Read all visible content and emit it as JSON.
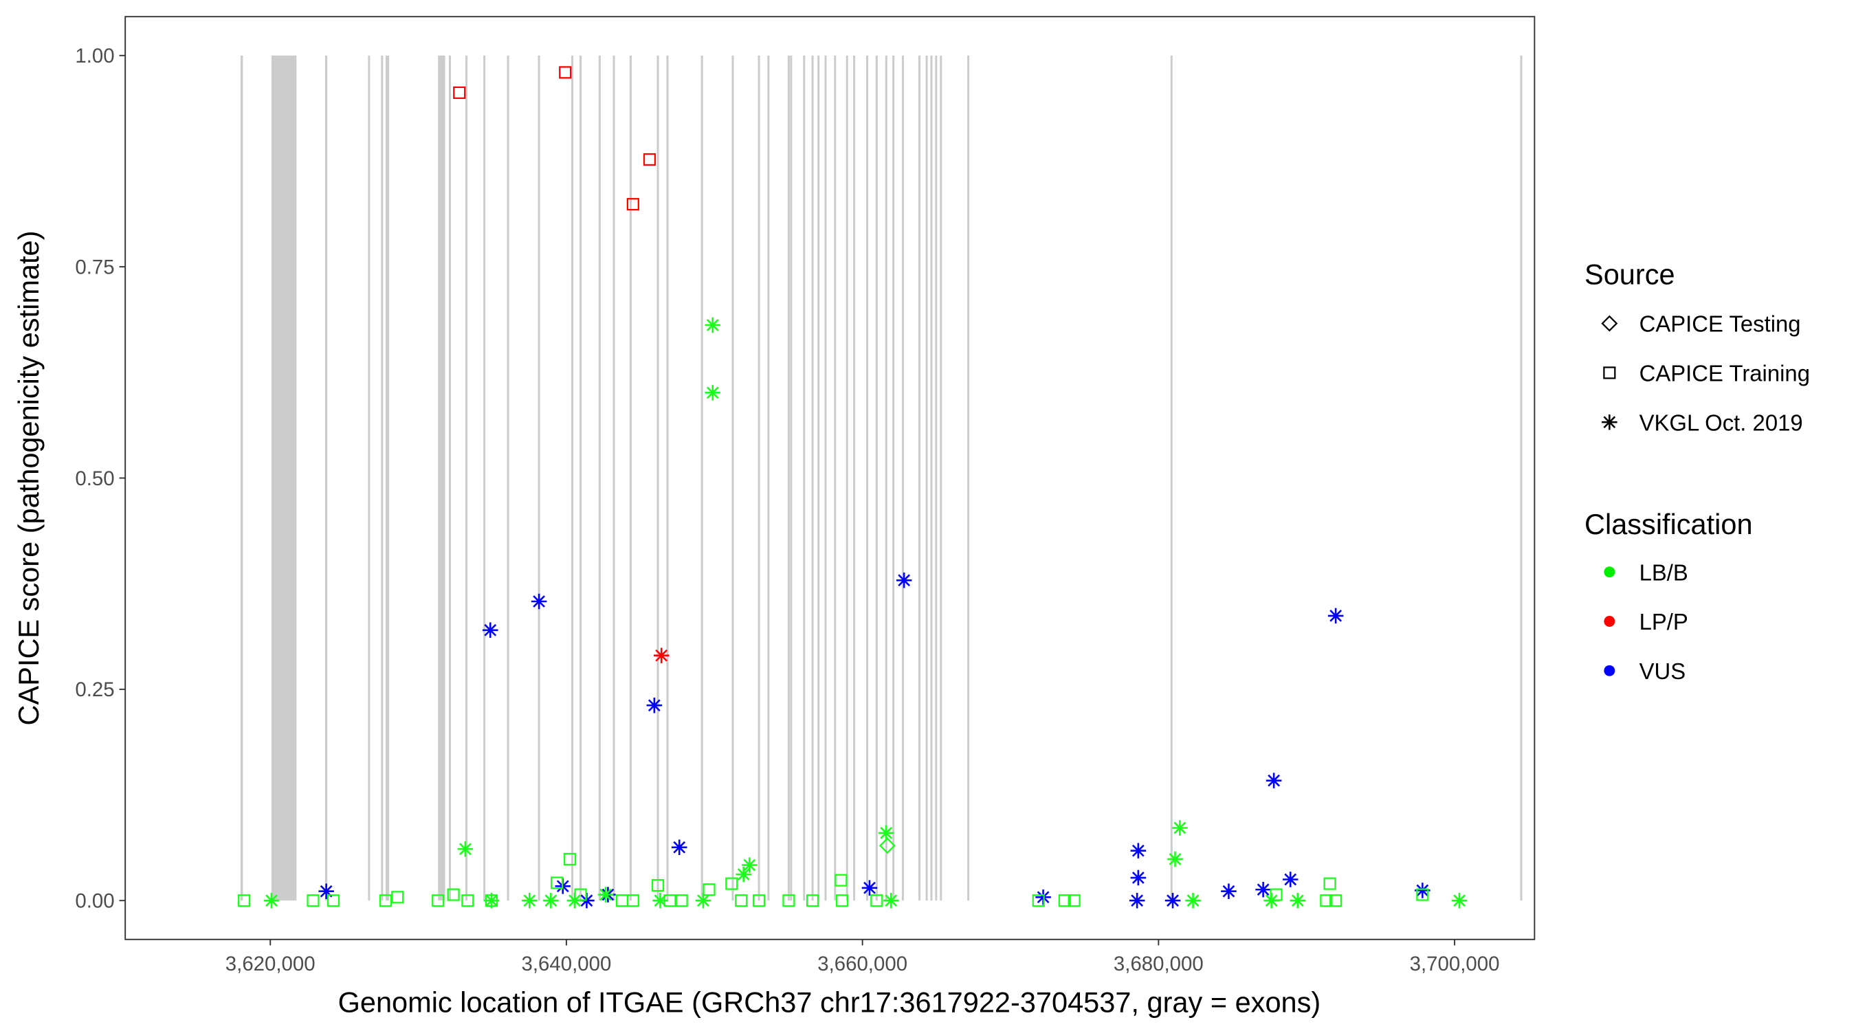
{
  "chart_data": {
    "type": "scatter",
    "xlabel": "Genomic location of ITGAE (GRCh37 chr17:3617922-3704537, gray = exons)",
    "ylabel": "CAPICE score (pathogenicity estimate)",
    "xlim": [
      3610200,
      3705400
    ],
    "ylim": [
      -0.046,
      1.046
    ],
    "xticks": [
      3620000,
      3640000,
      3660000,
      3680000,
      3700000
    ],
    "xtick_labels": [
      "3,620,000",
      "3,640,000",
      "3,660,000",
      "3,680,000",
      "3,700,000"
    ],
    "yticks": [
      0,
      0.25,
      0.5,
      0.75,
      1
    ],
    "ytick_labels": [
      "0.00",
      "0.25",
      "0.50",
      "0.75",
      "1.00"
    ],
    "grid": false,
    "exons": [
      [
        3617990,
        3618150
      ],
      [
        3620080,
        3621770
      ],
      [
        3623700,
        3623850
      ],
      [
        3626600,
        3626740
      ],
      [
        3627480,
        3627620
      ],
      [
        3627790,
        3628030
      ],
      [
        3631330,
        3631810
      ],
      [
        3632060,
        3632200
      ],
      [
        3633180,
        3633320
      ],
      [
        3634390,
        3634530
      ],
      [
        3635990,
        3636130
      ],
      [
        3638080,
        3638220
      ],
      [
        3640330,
        3640470
      ],
      [
        3640890,
        3641030
      ],
      [
        3642180,
        3642320
      ],
      [
        3643140,
        3643280
      ],
      [
        3644270,
        3644410
      ],
      [
        3646110,
        3646250
      ],
      [
        3646760,
        3646900
      ],
      [
        3649090,
        3649230
      ],
      [
        3651170,
        3651310
      ],
      [
        3652940,
        3653080
      ],
      [
        3653580,
        3653720
      ],
      [
        3654950,
        3655090
      ],
      [
        3655110,
        3655250
      ],
      [
        3655990,
        3656130
      ],
      [
        3656560,
        3656700
      ],
      [
        3656960,
        3657100
      ],
      [
        3657440,
        3657580
      ],
      [
        3658080,
        3658220
      ],
      [
        3658890,
        3659030
      ],
      [
        3659370,
        3659510
      ],
      [
        3660250,
        3660390
      ],
      [
        3660890,
        3661030
      ],
      [
        3661540,
        3661680
      ],
      [
        3662020,
        3662160
      ],
      [
        3662660,
        3662800
      ],
      [
        3663780,
        3663920
      ],
      [
        3664270,
        3664410
      ],
      [
        3664590,
        3664730
      ],
      [
        3664910,
        3665050
      ],
      [
        3665230,
        3665370
      ],
      [
        3667080,
        3667220
      ],
      [
        3680810,
        3680950
      ],
      [
        3704430,
        3704570
      ]
    ],
    "legend": {
      "placement": "right",
      "source_title": "Source",
      "source_items": [
        {
          "label": "CAPICE Testing",
          "shape": "diamond"
        },
        {
          "label": "CAPICE Training",
          "shape": "square"
        },
        {
          "label": "VKGL Oct. 2019",
          "shape": "star"
        }
      ],
      "class_title": "Classification",
      "class_items": [
        {
          "label": "LB/B",
          "color": "#00ee00"
        },
        {
          "label": "LP/P",
          "color": "#ff0000"
        },
        {
          "label": "VUS",
          "color": "#0000ff"
        }
      ]
    },
    "colors": {
      "LB/B": "#1aff1a",
      "LP/P": "#ff0000",
      "VUS": "#0000ff",
      "exon": "#cccccc"
    },
    "points": [
      {
        "x": 3632770,
        "y": 0.956,
        "s": "square",
        "c": "LP/P"
      },
      {
        "x": 3639920,
        "y": 0.98,
        "s": "square",
        "c": "LP/P"
      },
      {
        "x": 3645620,
        "y": 0.877,
        "s": "square",
        "c": "LP/P"
      },
      {
        "x": 3644500,
        "y": 0.824,
        "s": "square",
        "c": "LP/P"
      },
      {
        "x": 3646420,
        "y": 0.29,
        "s": "star",
        "c": "LP/P"
      },
      {
        "x": 3634860,
        "y": 0.32,
        "s": "star",
        "c": "VUS"
      },
      {
        "x": 3638150,
        "y": 0.354,
        "s": "star",
        "c": "VUS"
      },
      {
        "x": 3645940,
        "y": 0.231,
        "s": "star",
        "c": "VUS"
      },
      {
        "x": 3647630,
        "y": 0.063,
        "s": "star",
        "c": "VUS"
      },
      {
        "x": 3662810,
        "y": 0.379,
        "s": "star",
        "c": "VUS"
      },
      {
        "x": 3691970,
        "y": 0.337,
        "s": "star",
        "c": "VUS"
      },
      {
        "x": 3687790,
        "y": 0.142,
        "s": "star",
        "c": "VUS"
      },
      {
        "x": 3678630,
        "y": 0.059,
        "s": "star",
        "c": "VUS"
      },
      {
        "x": 3678630,
        "y": 0.027,
        "s": "star",
        "c": "VUS"
      },
      {
        "x": 3688910,
        "y": 0.025,
        "s": "star",
        "c": "VUS"
      },
      {
        "x": 3623780,
        "y": 0.011,
        "s": "star",
        "c": "VUS"
      },
      {
        "x": 3639760,
        "y": 0.017,
        "s": "star",
        "c": "VUS"
      },
      {
        "x": 3641370,
        "y": 0.0,
        "s": "star",
        "c": "VUS"
      },
      {
        "x": 3642810,
        "y": 0.007,
        "s": "star",
        "c": "VUS"
      },
      {
        "x": 3660480,
        "y": 0.015,
        "s": "star",
        "c": "VUS"
      },
      {
        "x": 3672210,
        "y": 0.004,
        "s": "star",
        "c": "VUS"
      },
      {
        "x": 3678550,
        "y": 0.0,
        "s": "star",
        "c": "VUS"
      },
      {
        "x": 3680960,
        "y": 0.0,
        "s": "star",
        "c": "VUS"
      },
      {
        "x": 3684740,
        "y": 0.011,
        "s": "star",
        "c": "VUS"
      },
      {
        "x": 3687070,
        "y": 0.013,
        "s": "star",
        "c": "VUS"
      },
      {
        "x": 3697830,
        "y": 0.012,
        "s": "star",
        "c": "VUS"
      },
      {
        "x": 3649880,
        "y": 0.681,
        "s": "star",
        "c": "LB/B"
      },
      {
        "x": 3649880,
        "y": 0.601,
        "s": "star",
        "c": "LB/B"
      },
      {
        "x": 3633170,
        "y": 0.061,
        "s": "star",
        "c": "LB/B"
      },
      {
        "x": 3661600,
        "y": 0.08,
        "s": "star",
        "c": "LB/B"
      },
      {
        "x": 3681440,
        "y": 0.086,
        "s": "star",
        "c": "LB/B"
      },
      {
        "x": 3681120,
        "y": 0.049,
        "s": "star",
        "c": "LB/B"
      },
      {
        "x": 3652370,
        "y": 0.042,
        "s": "star",
        "c": "LB/B"
      },
      {
        "x": 3651970,
        "y": 0.031,
        "s": "star",
        "c": "LB/B"
      },
      {
        "x": 3620080,
        "y": 0.0,
        "s": "star",
        "c": "LB/B"
      },
      {
        "x": 3634940,
        "y": 0.0,
        "s": "star",
        "c": "LB/B"
      },
      {
        "x": 3637510,
        "y": 0.0,
        "s": "star",
        "c": "LB/B"
      },
      {
        "x": 3638950,
        "y": 0.0,
        "s": "star",
        "c": "LB/B"
      },
      {
        "x": 3640560,
        "y": 0.0,
        "s": "star",
        "c": "LB/B"
      },
      {
        "x": 3642650,
        "y": 0.007,
        "s": "star",
        "c": "LB/B"
      },
      {
        "x": 3646340,
        "y": 0.0,
        "s": "star",
        "c": "LB/B"
      },
      {
        "x": 3649240,
        "y": 0.0,
        "s": "star",
        "c": "LB/B"
      },
      {
        "x": 3661930,
        "y": 0.0,
        "s": "star",
        "c": "LB/B"
      },
      {
        "x": 3682330,
        "y": 0.0,
        "s": "star",
        "c": "LB/B"
      },
      {
        "x": 3687630,
        "y": 0.0,
        "s": "star",
        "c": "LB/B"
      },
      {
        "x": 3689400,
        "y": 0.0,
        "s": "star",
        "c": "LB/B"
      },
      {
        "x": 3700320,
        "y": 0.0,
        "s": "star",
        "c": "LB/B"
      },
      {
        "x": 3661680,
        "y": 0.065,
        "s": "diamond",
        "c": "LB/B"
      },
      {
        "x": 3618230,
        "y": 0.0,
        "s": "square",
        "c": "LB/B"
      },
      {
        "x": 3622890,
        "y": 0.0,
        "s": "square",
        "c": "LB/B"
      },
      {
        "x": 3624260,
        "y": 0.0,
        "s": "square",
        "c": "LB/B"
      },
      {
        "x": 3627790,
        "y": 0.0,
        "s": "square",
        "c": "LB/B"
      },
      {
        "x": 3628590,
        "y": 0.004,
        "s": "square",
        "c": "LB/B"
      },
      {
        "x": 3631330,
        "y": 0.0,
        "s": "square",
        "c": "LB/B"
      },
      {
        "x": 3632370,
        "y": 0.007,
        "s": "square",
        "c": "LB/B"
      },
      {
        "x": 3633330,
        "y": 0.0,
        "s": "square",
        "c": "LB/B"
      },
      {
        "x": 3634940,
        "y": 0.0,
        "s": "square",
        "c": "LB/B"
      },
      {
        "x": 3639360,
        "y": 0.021,
        "s": "square",
        "c": "LB/B"
      },
      {
        "x": 3640240,
        "y": 0.049,
        "s": "square",
        "c": "LB/B"
      },
      {
        "x": 3640960,
        "y": 0.007,
        "s": "square",
        "c": "LB/B"
      },
      {
        "x": 3643770,
        "y": 0.0,
        "s": "square",
        "c": "LB/B"
      },
      {
        "x": 3644500,
        "y": 0.0,
        "s": "square",
        "c": "LB/B"
      },
      {
        "x": 3646180,
        "y": 0.018,
        "s": "square",
        "c": "LB/B"
      },
      {
        "x": 3646990,
        "y": 0.0,
        "s": "square",
        "c": "LB/B"
      },
      {
        "x": 3647790,
        "y": 0.0,
        "s": "square",
        "c": "LB/B"
      },
      {
        "x": 3649640,
        "y": 0.013,
        "s": "square",
        "c": "LB/B"
      },
      {
        "x": 3651160,
        "y": 0.02,
        "s": "square",
        "c": "LB/B"
      },
      {
        "x": 3651810,
        "y": 0.0,
        "s": "square",
        "c": "LB/B"
      },
      {
        "x": 3653010,
        "y": 0.0,
        "s": "square",
        "c": "LB/B"
      },
      {
        "x": 3655020,
        "y": 0.0,
        "s": "square",
        "c": "LB/B"
      },
      {
        "x": 3656630,
        "y": 0.0,
        "s": "square",
        "c": "LB/B"
      },
      {
        "x": 3658550,
        "y": 0.024,
        "s": "square",
        "c": "LB/B"
      },
      {
        "x": 3658630,
        "y": 0.0,
        "s": "square",
        "c": "LB/B"
      },
      {
        "x": 3660960,
        "y": 0.0,
        "s": "square",
        "c": "LB/B"
      },
      {
        "x": 3671890,
        "y": 0.0,
        "s": "square",
        "c": "LB/B"
      },
      {
        "x": 3673660,
        "y": 0.0,
        "s": "square",
        "c": "LB/B"
      },
      {
        "x": 3674300,
        "y": 0.0,
        "s": "square",
        "c": "LB/B"
      },
      {
        "x": 3687950,
        "y": 0.007,
        "s": "square",
        "c": "LB/B"
      },
      {
        "x": 3691570,
        "y": 0.02,
        "s": "square",
        "c": "LB/B"
      },
      {
        "x": 3691330,
        "y": 0.0,
        "s": "square",
        "c": "LB/B"
      },
      {
        "x": 3691970,
        "y": 0.0,
        "s": "square",
        "c": "LB/B"
      },
      {
        "x": 3697830,
        "y": 0.007,
        "s": "square",
        "c": "LB/B"
      }
    ]
  }
}
